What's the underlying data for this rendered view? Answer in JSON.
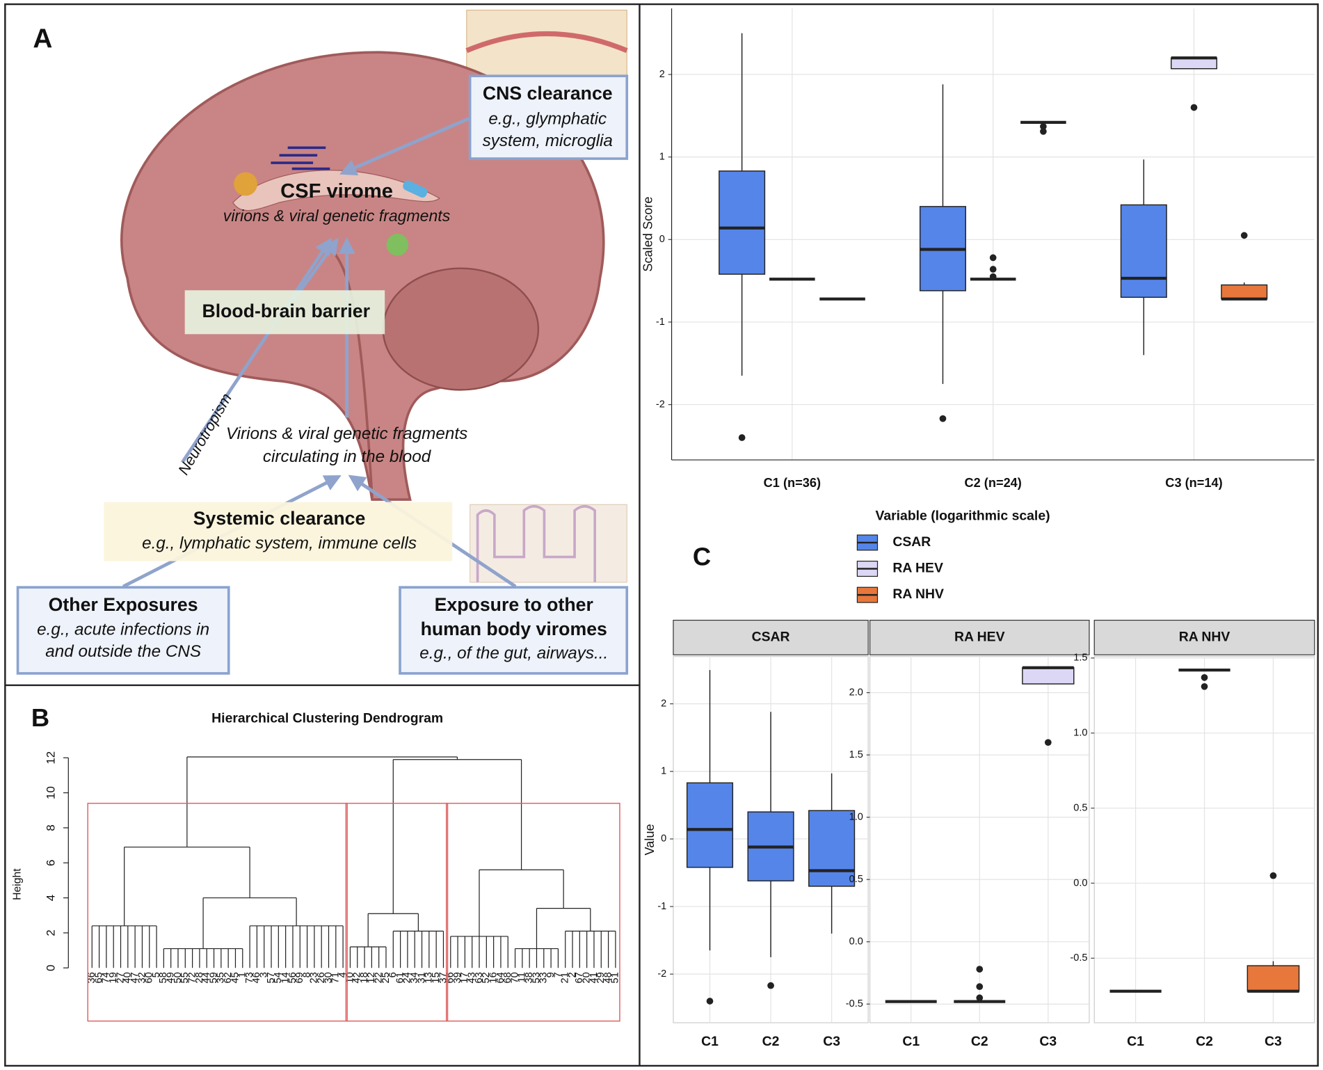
{
  "panels": [
    "A",
    "B",
    "C"
  ],
  "diagram": {
    "cns_clearance": {
      "title": "CNS clearance",
      "lines": [
        "e.g., glymphatic",
        "system, microglia"
      ]
    },
    "csf_virome": {
      "title": "CSF virome",
      "subtitle": "virions & viral genetic fragments"
    },
    "bbb": "Blood-brain barrier",
    "neurotropism": "Neurotropism",
    "circulating": [
      "Virions & viral genetic fragments",
      "circulating in the blood"
    ],
    "systemic_clearance": {
      "title": "Systemic clearance",
      "subtitle": "e.g., lymphatic system, immune cells"
    },
    "other_exposures": {
      "title": "Other Exposures",
      "lines": [
        "e.g., acute infections in",
        "and outside the CNS"
      ]
    },
    "other_viromes": {
      "title": [
        "Exposure to other",
        "human body viromes"
      ],
      "subtitle": "e.g., of the gut, airways..."
    }
  },
  "dendrogram": {
    "title": "Hierarchical Clustering Dendrogram",
    "ylabel": "Height",
    "ylim": [
      0,
      12.5
    ],
    "yticks": [
      0,
      2,
      4,
      6,
      8,
      10,
      12
    ],
    "cut_height": 9.4,
    "cut_color": "#e06060",
    "tree": {
      "height": 12.05,
      "children": [
        {
          "height": 6.9,
          "children": [
            {
              "height": 2.4,
              "leaves": [
                "36",
                "65",
                "74",
                "19",
                "27",
                "40",
                "47",
                "32",
                "60",
                "5"
              ]
            },
            {
              "height": 4.0,
              "children": [
                {
                  "height": 1.1,
                  "leaves": [
                    "58",
                    "49",
                    "50",
                    "55",
                    "72",
                    "28",
                    "44",
                    "59",
                    "35",
                    "62",
                    "45",
                    "1"
                  ]
                },
                {
                  "height": 2.4,
                  "leaves": [
                    "73",
                    "46",
                    "3",
                    "57",
                    "54",
                    "14",
                    "56",
                    "69",
                    "8",
                    "23",
                    "26",
                    "30",
                    "71",
                    "4"
                  ]
                }
              ]
            }
          ]
        },
        {
          "height": 11.9,
          "children": [
            {
              "height": 3.1,
              "children": [
                {
                  "height": 1.2,
                  "leaves": [
                    "10",
                    "42",
                    "18",
                    "12",
                    "22",
                    "25"
                  ]
                },
                {
                  "height": 2.1,
                  "leaves": [
                    "6",
                    "61",
                    "24",
                    "34",
                    "31",
                    "13",
                    "15",
                    "37"
                  ]
                }
              ]
            },
            {
              "height": 5.6,
              "children": [
                {
                  "height": 1.8,
                  "leaves": [
                    "66",
                    "39",
                    "17",
                    "43",
                    "63",
                    "52",
                    "16",
                    "64",
                    "68"
                  ]
                },
                {
                  "height": 3.4,
                  "children": [
                    {
                      "height": 1.1,
                      "leaves": [
                        "70",
                        "11",
                        "38",
                        "53",
                        "33",
                        "9",
                        "7"
                      ]
                    },
                    {
                      "height": 2.1,
                      "leaves": [
                        "21",
                        "2",
                        "67",
                        "20",
                        "41",
                        "29",
                        "48",
                        "51"
                      ]
                    }
                  ]
                }
              ]
            }
          ]
        }
      ]
    }
  },
  "chart_data": [
    {
      "type": "box",
      "ylabel": "Scaled Score",
      "categories": [
        "C1 (n=36)",
        "C2 (n=24)",
        "C3 (n=14)"
      ],
      "ylim": [
        -2.67,
        2.8
      ],
      "yticks": [
        -2,
        -1,
        0,
        1,
        2
      ],
      "grid": true,
      "legend_title": "Variable (logarithmic scale)",
      "series": [
        {
          "name": "CSAR",
          "color": "#5585e8",
          "values": [
            {
              "min": -1.65,
              "q1": -0.42,
              "median": 0.14,
              "q3": 0.83,
              "max": 2.5,
              "outliers": [
                -2.4
              ]
            },
            {
              "min": -1.75,
              "q1": -0.62,
              "median": -0.12,
              "q3": 0.4,
              "max": 1.88,
              "outliers": [
                -2.17
              ]
            },
            {
              "min": -1.4,
              "q1": -0.7,
              "median": -0.47,
              "q3": 0.42,
              "max": 0.97,
              "outliers": []
            }
          ]
        },
        {
          "name": "RA HEV",
          "color": "#dcd7f5",
          "values": [
            {
              "min": -0.48,
              "q1": -0.48,
              "median": -0.48,
              "q3": -0.48,
              "max": -0.48,
              "outliers": []
            },
            {
              "min": -0.48,
              "q1": -0.48,
              "median": -0.48,
              "q3": -0.48,
              "max": -0.48,
              "outliers": [
                -0.22,
                -0.36,
                -0.45
              ]
            },
            {
              "min": 2.07,
              "q1": 2.07,
              "median": 2.2,
              "q3": 2.2,
              "max": 2.2,
              "outliers": [
                1.6
              ]
            }
          ]
        },
        {
          "name": "RA NHV",
          "color": "#e8773c",
          "values": [
            {
              "min": -0.72,
              "q1": -0.72,
              "median": -0.72,
              "q3": -0.72,
              "max": -0.72,
              "outliers": []
            },
            {
              "min": 1.42,
              "q1": 1.42,
              "median": 1.42,
              "q3": 1.42,
              "max": 1.42,
              "outliers": [
                1.31,
                1.37
              ]
            },
            {
              "min": -0.72,
              "q1": -0.72,
              "median": -0.72,
              "q3": -0.55,
              "max": -0.52,
              "outliers": [
                0.05
              ]
            }
          ]
        }
      ]
    },
    {
      "type": "box",
      "title": "CSAR",
      "ylabel": "Value",
      "categories": [
        "C1",
        "C2",
        "C3"
      ],
      "ylim": [
        -2.72,
        2.7
      ],
      "yticks": [
        -2,
        -1,
        0,
        1,
        2
      ],
      "grid": true,
      "color": "#5585e8",
      "values": [
        {
          "min": -1.65,
          "q1": -0.42,
          "median": 0.14,
          "q3": 0.83,
          "max": 2.5,
          "outliers": [
            -2.4
          ]
        },
        {
          "min": -1.75,
          "q1": -0.62,
          "median": -0.12,
          "q3": 0.4,
          "max": 1.88,
          "outliers": [
            -2.17
          ]
        },
        {
          "min": -1.4,
          "q1": -0.7,
          "median": -0.47,
          "q3": 0.42,
          "max": 0.97,
          "outliers": []
        }
      ]
    },
    {
      "type": "box",
      "title": "RA HEV",
      "categories": [
        "C1",
        "C2",
        "C3"
      ],
      "ylim": [
        -0.65,
        2.29
      ],
      "yticks": [
        {
          "value": -0.5,
          "label": "-0.5"
        },
        {
          "value": 0,
          "label": "0.0"
        },
        {
          "value": 0.5,
          "label": "0.5"
        },
        {
          "value": 1,
          "label": "1.0"
        },
        {
          "value": 1.5,
          "label": "1.5"
        },
        {
          "value": 2,
          "label": "2.0"
        }
      ],
      "grid": true,
      "color": "#dcd7f5",
      "values": [
        {
          "min": -0.48,
          "q1": -0.48,
          "median": -0.48,
          "q3": -0.48,
          "max": -0.48,
          "outliers": []
        },
        {
          "min": -0.48,
          "q1": -0.48,
          "median": -0.48,
          "q3": -0.48,
          "max": -0.48,
          "outliers": [
            -0.22,
            -0.36,
            -0.45
          ]
        },
        {
          "min": 2.07,
          "q1": 2.07,
          "median": 2.2,
          "q3": 2.2,
          "max": 2.2,
          "outliers": [
            1.6
          ]
        }
      ]
    },
    {
      "type": "box",
      "title": "RA NHV",
      "categories": [
        "C1",
        "C2",
        "C3"
      ],
      "ylim": [
        -0.93,
        1.51
      ],
      "yticks": [
        {
          "value": -0.5,
          "label": "-0.5"
        },
        {
          "value": 0,
          "label": "0.0"
        },
        {
          "value": 0.5,
          "label": "0.5"
        },
        {
          "value": 1,
          "label": "1.0"
        },
        {
          "value": 1.5,
          "label": "1.5"
        }
      ],
      "grid": true,
      "color": "#e8773c",
      "values": [
        {
          "min": -0.72,
          "q1": -0.72,
          "median": -0.72,
          "q3": -0.72,
          "max": -0.72,
          "outliers": []
        },
        {
          "min": 1.42,
          "q1": 1.42,
          "median": 1.42,
          "q3": 1.42,
          "max": 1.42,
          "outliers": [
            1.31,
            1.37
          ]
        },
        {
          "min": -0.72,
          "q1": -0.72,
          "median": -0.72,
          "q3": -0.55,
          "max": -0.52,
          "outliers": [
            0.05
          ]
        }
      ]
    }
  ]
}
